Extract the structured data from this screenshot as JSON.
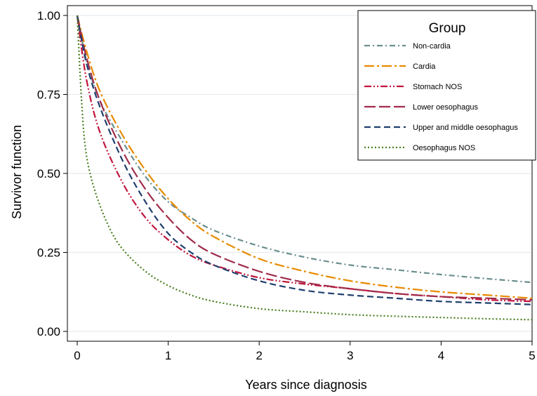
{
  "chart_data": {
    "type": "line",
    "xlabel": "Years since diagnosis",
    "ylabel": "Survivor function",
    "xlim": [
      0,
      5
    ],
    "ylim": [
      0,
      1
    ],
    "x_ticks": [
      0,
      1,
      2,
      3,
      4,
      5
    ],
    "x_tick_labels": [
      "0",
      "1",
      "2",
      "3",
      "4",
      "5"
    ],
    "y_ticks": [
      0,
      0.25,
      0.5,
      0.75,
      1.0
    ],
    "y_tick_labels": [
      "0.00",
      "0.25",
      "0.50",
      "0.75",
      "1.00"
    ],
    "grid": true,
    "legend": {
      "title": "Group",
      "placement": "top-right"
    },
    "series": [
      {
        "name": "Non-cardia",
        "color": "#6b8e8e",
        "dash": "dash-dot",
        "x": [
          0,
          0.1,
          0.25,
          0.5,
          0.75,
          1,
          1.25,
          1.5,
          2,
          2.5,
          3,
          3.5,
          4,
          4.5,
          5
        ],
        "y": [
          1.0,
          0.86,
          0.73,
          0.6,
          0.49,
          0.41,
          0.36,
          0.32,
          0.27,
          0.235,
          0.21,
          0.195,
          0.18,
          0.167,
          0.155
        ]
      },
      {
        "name": "Cardia",
        "color": "#e88a00",
        "dash": "long-dash-dot",
        "x": [
          0,
          0.1,
          0.25,
          0.5,
          0.75,
          1,
          1.25,
          1.5,
          2,
          2.5,
          3,
          3.5,
          4,
          4.5,
          5
        ],
        "y": [
          1.0,
          0.89,
          0.76,
          0.62,
          0.51,
          0.42,
          0.35,
          0.3,
          0.23,
          0.19,
          0.16,
          0.14,
          0.125,
          0.115,
          0.105
        ]
      },
      {
        "name": "Stomach NOS",
        "color": "#c0153c",
        "dash": "dash-dot-dot",
        "x": [
          0,
          0.1,
          0.25,
          0.5,
          0.75,
          1,
          1.25,
          1.5,
          2,
          2.5,
          3,
          3.5,
          4,
          4.5,
          5
        ],
        "y": [
          1.0,
          0.8,
          0.63,
          0.47,
          0.36,
          0.29,
          0.24,
          0.21,
          0.17,
          0.15,
          0.135,
          0.12,
          0.11,
          0.1,
          0.095
        ]
      },
      {
        "name": "Lower oesophagus",
        "color": "#a02c4a",
        "dash": "long-dash",
        "x": [
          0,
          0.1,
          0.25,
          0.5,
          0.75,
          1,
          1.25,
          1.5,
          2,
          2.5,
          3,
          3.5,
          4,
          4.5,
          5
        ],
        "y": [
          1.0,
          0.87,
          0.73,
          0.57,
          0.45,
          0.36,
          0.29,
          0.245,
          0.19,
          0.155,
          0.135,
          0.12,
          0.11,
          0.105,
          0.1
        ]
      },
      {
        "name": "Upper and middle oesophagus",
        "color": "#1f3f6e",
        "dash": "dash",
        "x": [
          0,
          0.1,
          0.25,
          0.5,
          0.75,
          1,
          1.25,
          1.5,
          2,
          2.5,
          3,
          3.5,
          4,
          4.5,
          5
        ],
        "y": [
          1.0,
          0.85,
          0.71,
          0.54,
          0.41,
          0.31,
          0.25,
          0.21,
          0.16,
          0.13,
          0.115,
          0.105,
          0.095,
          0.09,
          0.085
        ]
      },
      {
        "name": "Oesophagus NOS",
        "color": "#4b7f1e",
        "dash": "dot",
        "x": [
          0,
          0.05,
          0.1,
          0.2,
          0.35,
          0.5,
          0.75,
          1,
          1.25,
          1.5,
          2,
          2.5,
          3,
          3.5,
          4,
          4.5,
          5
        ],
        "y": [
          1.0,
          0.72,
          0.56,
          0.44,
          0.33,
          0.26,
          0.19,
          0.145,
          0.115,
          0.095,
          0.072,
          0.062,
          0.053,
          0.048,
          0.044,
          0.04,
          0.037
        ]
      }
    ]
  }
}
